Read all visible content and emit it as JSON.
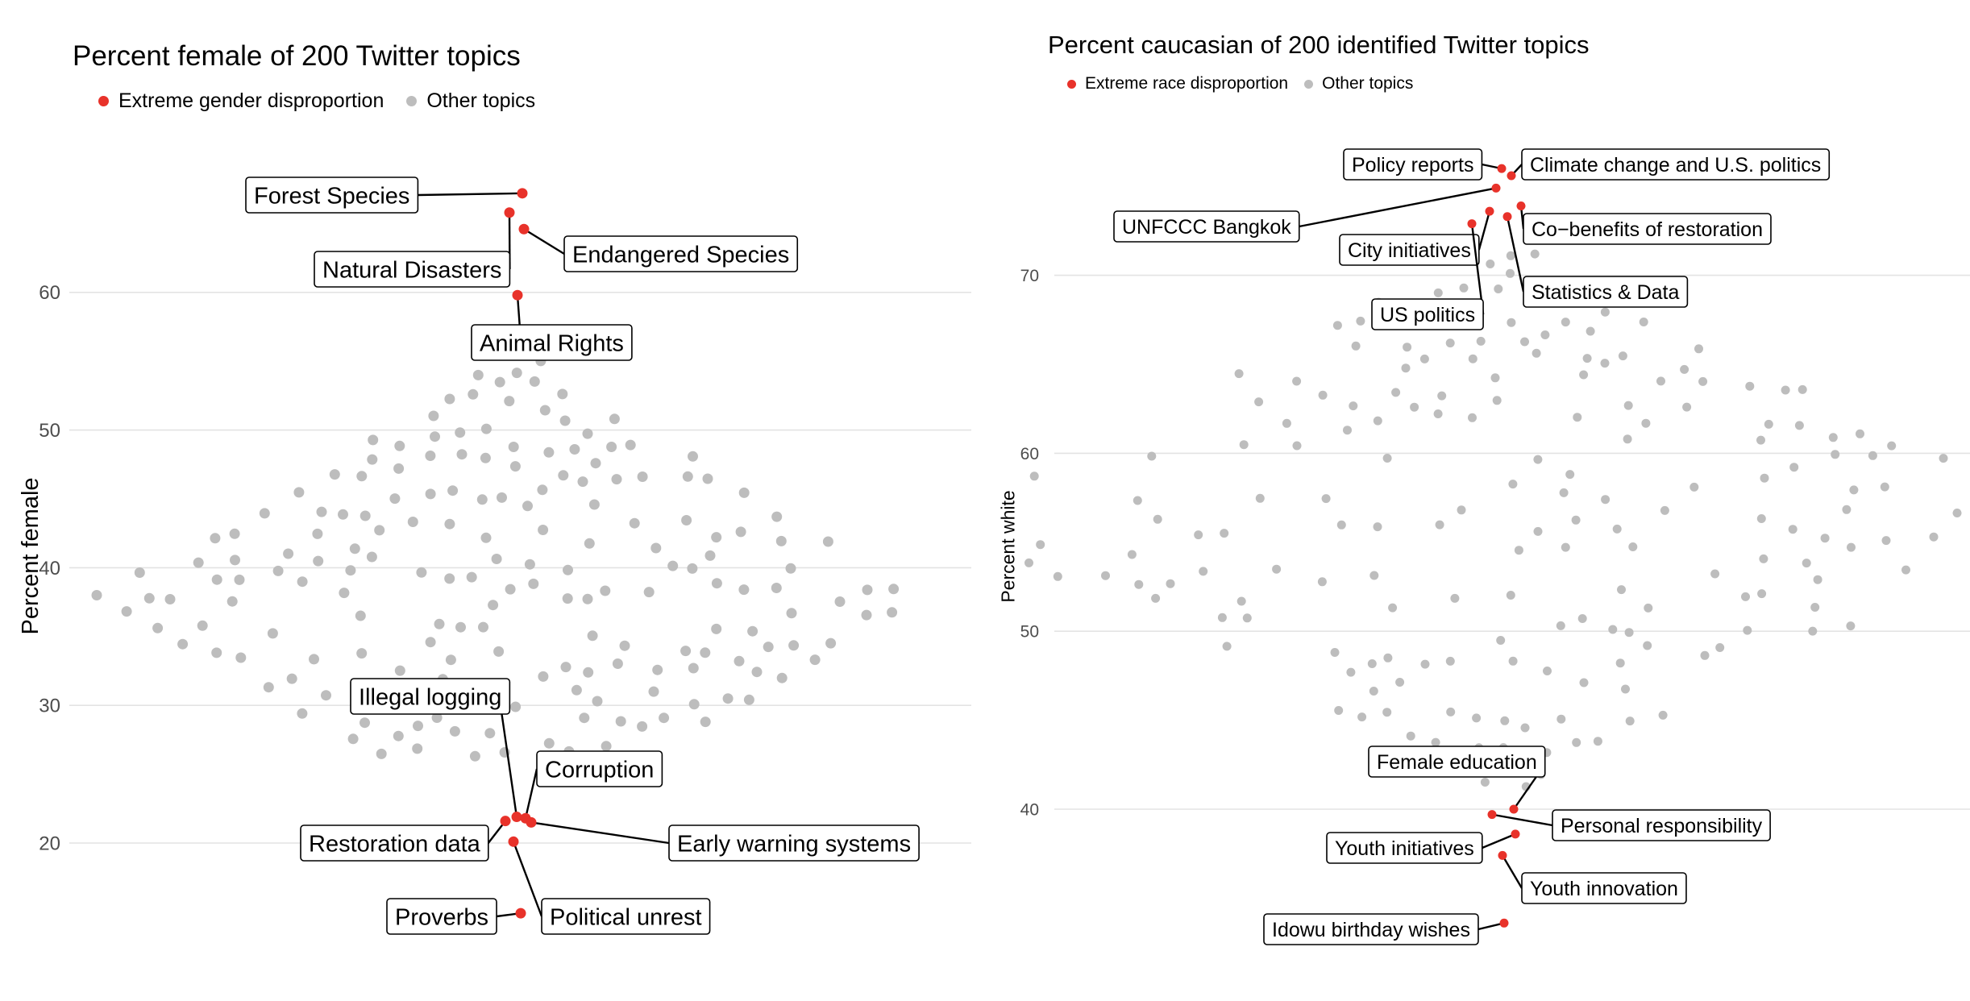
{
  "colors": {
    "highlight": "#e8322a",
    "other": "#bdbdbd",
    "grid": "#e3e3e3",
    "tick": "#4d4d4d"
  },
  "chart_data": [
    {
      "type": "scatter",
      "title": "Percent female of 200 Twitter topics",
      "xlabel": "",
      "ylabel": "Percent female",
      "ylim": [
        11.5,
        75
      ],
      "yticks": [
        20,
        30,
        40,
        50,
        60
      ],
      "legend": {
        "position": "top-left",
        "entries": [
          "Extreme gender disproportion",
          "Other topics"
        ]
      },
      "highlighted": [
        {
          "label": "Forest Species",
          "x": 0.08,
          "y": 67.2
        },
        {
          "label": "Natural Disasters",
          "x": -0.08,
          "y": 65.8
        },
        {
          "label": "Endangered Species",
          "x": 0.1,
          "y": 64.6
        },
        {
          "label": "Animal Rights",
          "x": 0.02,
          "y": 59.8
        },
        {
          "label": "Illegal logging",
          "x": 0.01,
          "y": 21.9
        },
        {
          "label": "Corruption",
          "x": 0.12,
          "y": 21.8
        },
        {
          "label": "Restoration data",
          "x": -0.13,
          "y": 21.6
        },
        {
          "label": "Early warning systems",
          "x": 0.19,
          "y": 21.5
        },
        {
          "label": "Political unrest",
          "x": -0.03,
          "y": 20.1
        },
        {
          "label": "Proverbs",
          "x": 0.06,
          "y": 14.9
        }
      ],
      "other_range": [
        26.2,
        55.6
      ]
    },
    {
      "type": "scatter",
      "title": "Percent caucasian of 200 identified Twitter topics",
      "xlabel": "",
      "ylabel": "Percent white",
      "ylim": [
        32.5,
        79
      ],
      "yticks": [
        40,
        50,
        60,
        70
      ],
      "legend": {
        "position": "top-left",
        "entries": [
          "Extreme race disproportion",
          "Other topics"
        ]
      },
      "highlighted": [
        {
          "label": "Policy reports",
          "x": -0.05,
          "y": 76.0
        },
        {
          "label": "Climate change and U.S. politics",
          "x": 0.07,
          "y": 75.6
        },
        {
          "label": "UNFCCC Bangkok",
          "x": -0.12,
          "y": 74.9
        },
        {
          "label": "Co−benefits of restoration",
          "x": 0.19,
          "y": 73.9
        },
        {
          "label": "City initiatives",
          "x": -0.2,
          "y": 73.6
        },
        {
          "label": "Statistics & Data",
          "x": 0.02,
          "y": 73.3
        },
        {
          "label": "US politics",
          "x": -0.42,
          "y": 72.9
        },
        {
          "label": "Female education",
          "x": 0.1,
          "y": 40.0
        },
        {
          "label": "Personal responsibility",
          "x": -0.17,
          "y": 39.7
        },
        {
          "label": "Youth initiatives",
          "x": 0.12,
          "y": 38.6
        },
        {
          "label": "Youth innovation",
          "x": -0.04,
          "y": 37.4
        },
        {
          "label": "Idowu birthday wishes",
          "x": -0.02,
          "y": 33.6
        }
      ],
      "other_range": [
        41.2,
        71.6
      ]
    }
  ]
}
